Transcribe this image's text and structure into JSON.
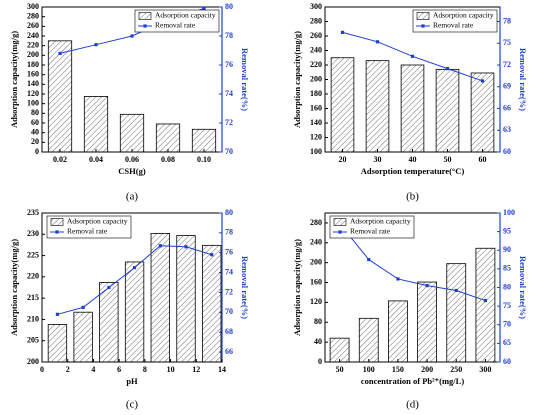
{
  "chart_data": [
    {
      "type": "bar",
      "caption": "(a)",
      "xlabel": "CSH(g)",
      "ylabel": "Adsorption capacity(mg/g)",
      "y2label": "Removal rate(%)",
      "categories": [
        "0.02",
        "0.04",
        "0.06",
        "0.08",
        "0.10"
      ],
      "series": [
        {
          "name": "Adsorption capacity",
          "color": "#333333",
          "values": [
            230,
            115,
            78,
            58,
            47
          ]
        },
        {
          "name": "Removal rate",
          "color": "#1f3fd0",
          "axis": "y2",
          "values": [
            76.8,
            77.4,
            78.0,
            79.1,
            79.9
          ]
        }
      ],
      "ylim": [
        0,
        300
      ],
      "yticks": [
        0,
        20,
        40,
        60,
        80,
        100,
        120,
        140,
        160,
        180,
        200,
        220,
        240,
        260,
        280,
        300
      ],
      "y2lim": [
        70,
        80
      ],
      "y2ticks": [
        70,
        72,
        74,
        76,
        78,
        80
      ],
      "legend": "upper right"
    },
    {
      "type": "bar",
      "caption": "(b)",
      "xlabel": "Adsorption temperature(°C)",
      "ylabel": "Adsorption capacity(mg/g)",
      "y2label": "Removal rate(%)",
      "categories": [
        "20",
        "30",
        "40",
        "50",
        "60"
      ],
      "series": [
        {
          "name": "Adsorption capacity",
          "color": "#333333",
          "values": [
            230,
            226,
            220,
            214,
            209
          ]
        },
        {
          "name": "Removal rate",
          "color": "#1f3fd0",
          "axis": "y2",
          "values": [
            76.5,
            75.2,
            73.2,
            71.5,
            69.8
          ]
        }
      ],
      "ylim": [
        100,
        300
      ],
      "yticks": [
        100,
        120,
        140,
        160,
        180,
        200,
        220,
        240,
        260,
        280,
        300
      ],
      "y2lim": [
        60,
        80
      ],
      "y2ticks": [
        60,
        63,
        66,
        69,
        72,
        75,
        78
      ],
      "legend": "upper right"
    },
    {
      "type": "bar",
      "caption": "(c)",
      "xlabel": "pH",
      "ylabel": "Adsorption capacity(mg/g)",
      "y2label": "Removal rate(%)",
      "x": [
        1.2,
        3.2,
        5.2,
        7.2,
        9.2,
        11.2,
        13.2
      ],
      "xlim": [
        0,
        14
      ],
      "xticks": [
        0,
        2,
        4,
        6,
        8,
        10,
        12,
        14
      ],
      "series": [
        {
          "name": "Adsorption capacity",
          "color": "#333333",
          "values": [
            208.8,
            211.7,
            218.7,
            223.5,
            230.2,
            229.7,
            227.4
          ]
        },
        {
          "name": "Removal rate",
          "color": "#1f3fd0",
          "axis": "y2",
          "values": [
            69.8,
            70.5,
            72.5,
            74.5,
            76.7,
            76.6,
            75.8
          ]
        }
      ],
      "ylim": [
        200,
        235
      ],
      "yticks": [
        200,
        205,
        210,
        215,
        220,
        225,
        230,
        235
      ],
      "y2lim": [
        65,
        80
      ],
      "y2ticks": [
        66,
        68,
        70,
        72,
        74,
        76,
        78,
        80
      ],
      "legend": "upper left"
    },
    {
      "type": "bar",
      "caption": "(d)",
      "xlabel": "concentration  of  Pb²⁺(mg/L)",
      "ylabel": "Adsorption capacity(mg/g)",
      "y2label": "Removal rate(%)",
      "categories": [
        "50",
        "100",
        "150",
        "200",
        "250",
        "300"
      ],
      "series": [
        {
          "name": "Adsorption capacity",
          "color": "#333333",
          "values": [
            48,
            88,
            123,
            161,
            198,
            229
          ]
        },
        {
          "name": "Removal rate",
          "color": "#1f3fd0",
          "axis": "y2",
          "values": [
            97.2,
            87.5,
            82.3,
            80.5,
            79.2,
            76.5
          ]
        }
      ],
      "ylim": [
        0,
        300
      ],
      "yticks": [
        0,
        40,
        80,
        120,
        160,
        200,
        240,
        280
      ],
      "y2lim": [
        60,
        100
      ],
      "y2ticks": [
        60,
        65,
        70,
        75,
        80,
        85,
        90,
        95,
        100
      ],
      "legend": "upper left"
    }
  ]
}
